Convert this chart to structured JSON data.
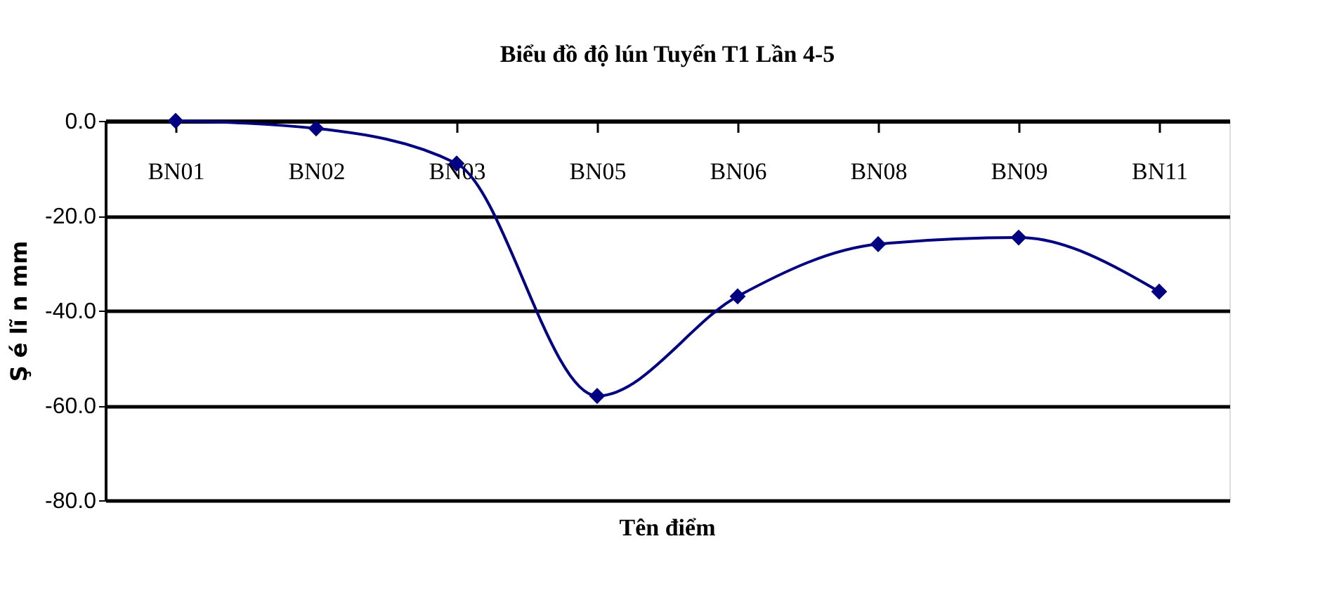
{
  "chart_data": {
    "type": "line",
    "title": "Biểu đồ độ lún Tuyến T1 Lần  4-5",
    "xlabel": "Tên điểm",
    "ylabel": "Ş é lĩ n mm",
    "categories": [
      "BN01",
      "BN02",
      "BN03",
      "BN05",
      "BN06",
      "BN08",
      "BN09",
      "BN11"
    ],
    "series": [
      {
        "color": "#000080",
        "values": [
          0,
          -1.6,
          -9,
          -58,
          -37,
          -26,
          -24.6,
          -36
        ]
      }
    ],
    "ylim": [
      -80,
      0
    ],
    "yticks": [
      {
        "value": 0,
        "label": "0.0"
      },
      {
        "value": -20,
        "label": "-20.0"
      },
      {
        "value": -40,
        "label": "-40.0"
      },
      {
        "value": -60,
        "label": "-60.0"
      },
      {
        "value": -80,
        "label": "-80.0"
      }
    ],
    "grid": "y",
    "marker": "diamond",
    "line_style": "solid"
  }
}
